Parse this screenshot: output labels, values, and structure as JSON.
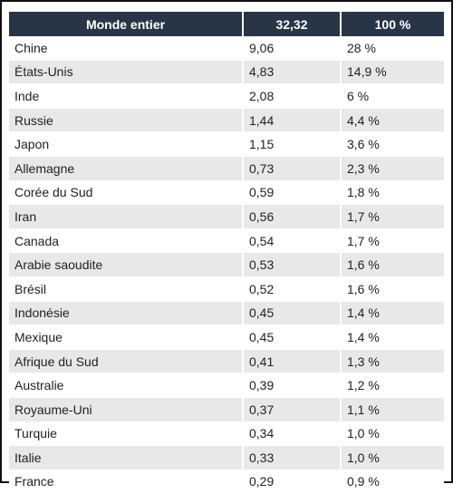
{
  "table": {
    "headers": [
      "Monde entier",
      "32,32",
      "100 %"
    ],
    "rows": [
      [
        "Chine",
        "9,06",
        "28 %"
      ],
      [
        "États-Unis",
        "4,83",
        "14,9 %"
      ],
      [
        "Inde",
        "2,08",
        "6 %"
      ],
      [
        "Russie",
        "1,44",
        "4,4 %"
      ],
      [
        "Japon",
        "1,15",
        "3,6 %"
      ],
      [
        "Allemagne",
        "0,73",
        "2,3 %"
      ],
      [
        "Corée du Sud",
        "0,59",
        "1,8 %"
      ],
      [
        "Iran",
        "0,56",
        "1,7 %"
      ],
      [
        "Canada",
        "0,54",
        "1,7 %"
      ],
      [
        "Arabie saoudite",
        "0,53",
        "1,6 %"
      ],
      [
        "Brésil",
        "0,52",
        "1,6 %"
      ],
      [
        "Indonésie",
        "0,45",
        "1,4 %"
      ],
      [
        "Mexique",
        "0,45",
        "1,4 %"
      ],
      [
        "Afrique du Sud",
        "0,41",
        "1,3 %"
      ],
      [
        "Australie",
        "0,39",
        "1,2 %"
      ],
      [
        "Royaume-Uni",
        "0,37",
        "1,1 %"
      ],
      [
        "Turquie",
        "0,34",
        "1,0 %"
      ],
      [
        "Italie",
        "0,33",
        "1,0 %"
      ],
      [
        "France",
        "0,29",
        "0,9 %"
      ]
    ]
  },
  "colors": {
    "header_background": "#273546",
    "header_text": "#ffffff",
    "stripe": "#e8e8e8",
    "text": "#222222"
  }
}
